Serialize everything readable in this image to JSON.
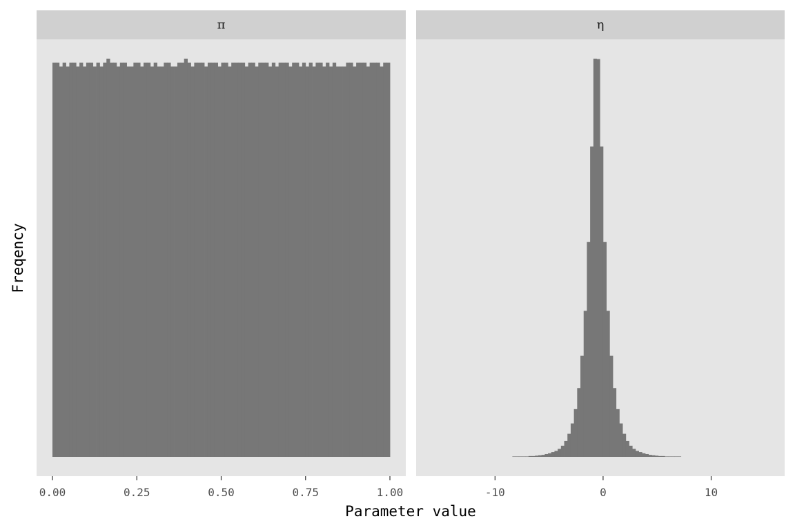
{
  "chart_data": {
    "type": "bar",
    "xlabel": "Parameter value",
    "ylabel": "Freqency",
    "colors": {
      "panel_background": "#e5e5e5",
      "strip_background": "#d0d0d0",
      "bar_fill": "#777777",
      "axis_tick": "#333333"
    },
    "grid": false,
    "y_tick_labels": false,
    "y_scale": "free",
    "panels": [
      {
        "strip_label": "π",
        "xlim": [
          -0.047,
          1.047
        ],
        "ylim": [
          0,
          850
        ],
        "x_ticks": [
          0,
          0.25,
          0.5,
          0.75,
          1
        ],
        "x_tick_labels": [
          "0.00",
          "0.25",
          "0.50",
          "0.75",
          "1.00"
        ],
        "bin_edges_from": 0,
        "bin_width": 0.01,
        "counts": [
          100,
          100,
          99,
          100,
          99,
          100,
          100,
          99,
          100,
          99,
          100,
          100,
          99,
          100,
          99,
          100,
          101,
          100,
          100,
          99,
          100,
          100,
          99,
          99,
          100,
          100,
          99,
          100,
          100,
          99,
          100,
          99,
          99,
          100,
          100,
          99,
          99,
          100,
          100,
          101,
          100,
          99,
          100,
          100,
          100,
          99,
          100,
          100,
          100,
          99,
          100,
          100,
          99,
          100,
          100,
          100,
          100,
          99,
          100,
          100,
          99,
          100,
          100,
          100,
          99,
          100,
          99,
          100,
          100,
          100,
          99,
          100,
          100,
          99,
          100,
          99,
          100,
          99,
          100,
          100,
          99,
          100,
          99,
          100,
          99,
          99,
          99,
          100,
          100,
          99,
          100,
          100,
          100,
          99,
          100,
          100,
          100,
          99,
          100,
          100
        ]
      },
      {
        "strip_label": "η",
        "xlim": [
          -17.3,
          16.8
        ],
        "ylim": [
          0,
          760
        ],
        "x_ticks": [
          -10,
          0,
          10
        ],
        "x_tick_labels": [
          "-10",
          "0",
          "10"
        ],
        "bin_edges_from": -12.0,
        "bin_width": 0.3,
        "counts": [
          0,
          0,
          0,
          0,
          0,
          0,
          0,
          0,
          0,
          0,
          0,
          0,
          1,
          1,
          1,
          1,
          1,
          2,
          2,
          3,
          4,
          5,
          7,
          9,
          12,
          15,
          20,
          28,
          40,
          58,
          84,
          120,
          173,
          254,
          367,
          540,
          780,
          1001,
          1000,
          780,
          540,
          367,
          254,
          173,
          120,
          84,
          58,
          40,
          28,
          20,
          15,
          12,
          9,
          7,
          5,
          4,
          3,
          2,
          2,
          1,
          1,
          1,
          1,
          1,
          0,
          0,
          0,
          0,
          0,
          0,
          0,
          0,
          0,
          0,
          0,
          0,
          0,
          0,
          0,
          0
        ]
      }
    ]
  }
}
